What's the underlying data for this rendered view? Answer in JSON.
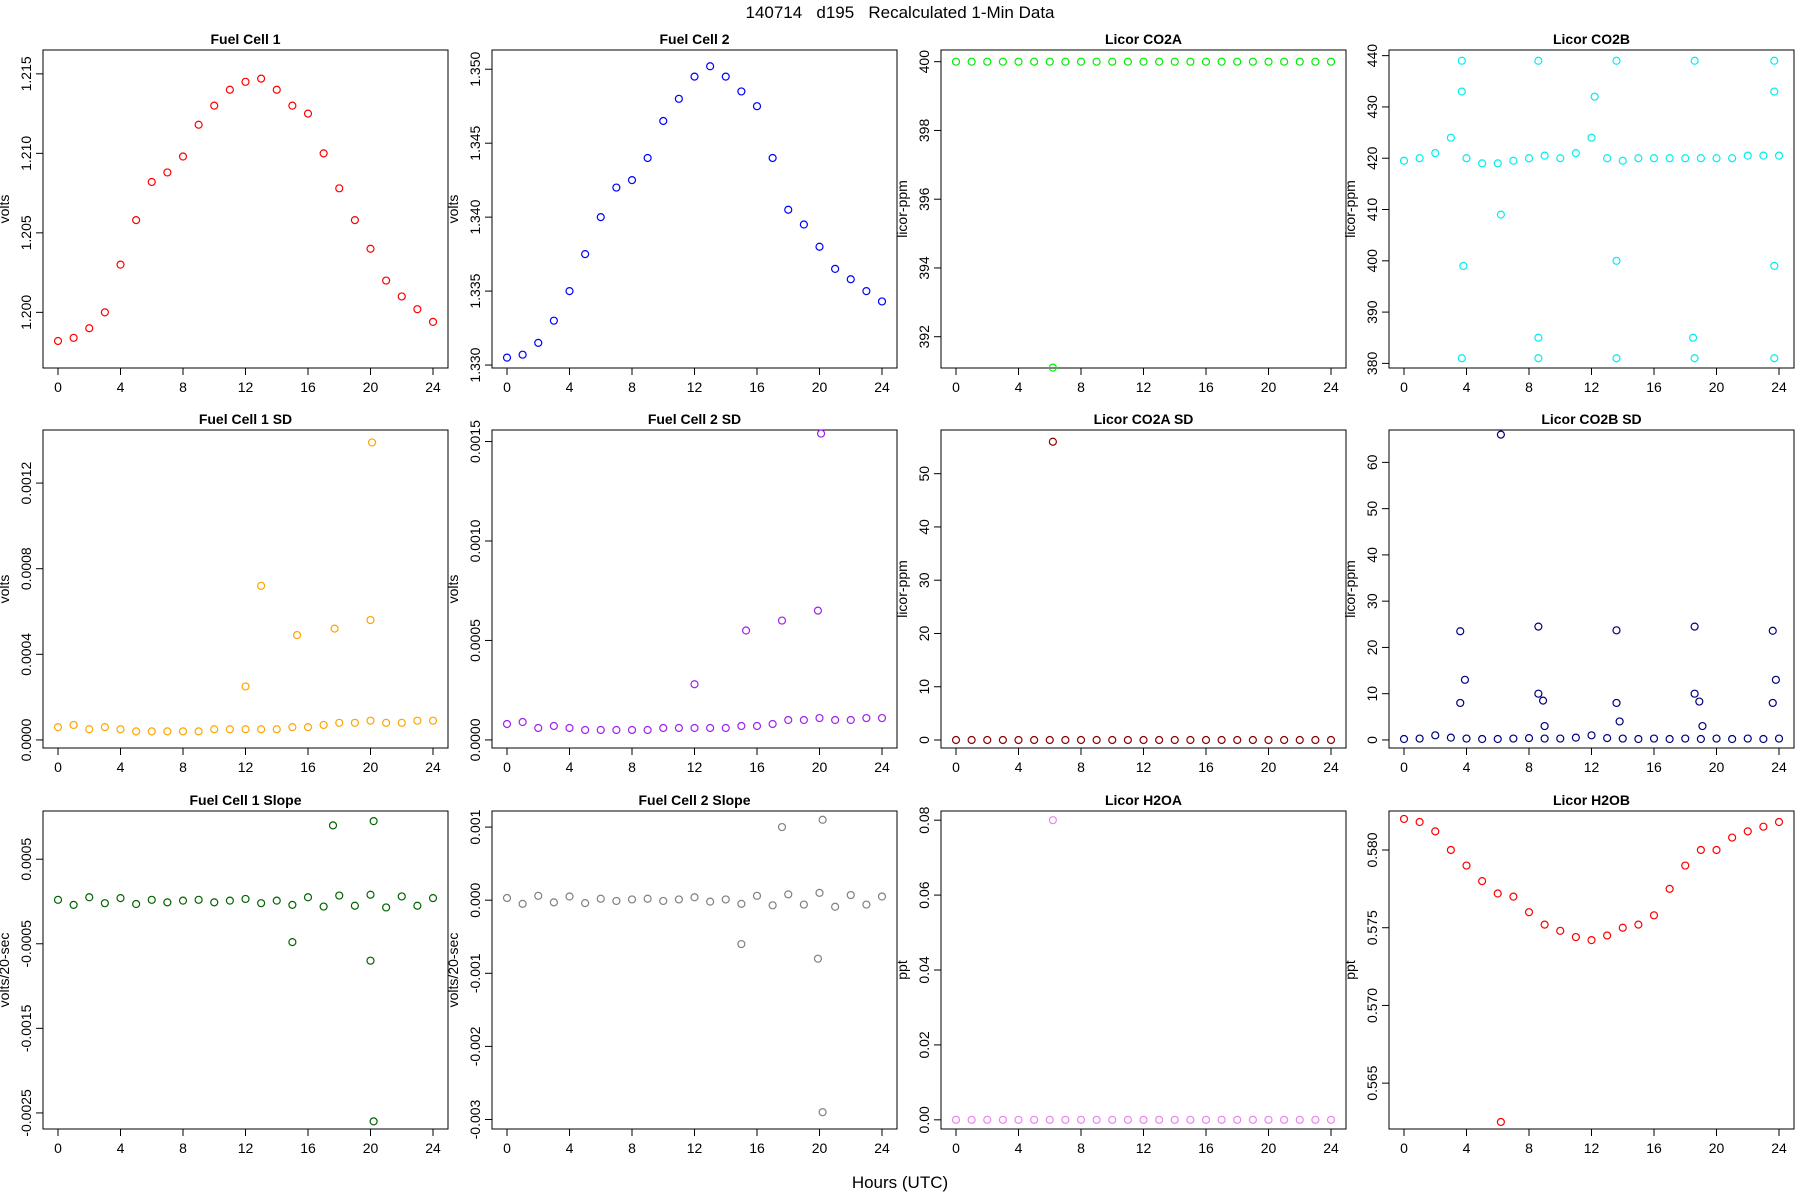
{
  "title": "140714   d195   Recalculated 1-Min Data",
  "x_label": "Hours (UTC)",
  "chart_data": [
    {
      "type": "scatter",
      "title": "Fuel Cell 1",
      "y_label": "volts",
      "color": "#ff0000",
      "x": [
        0,
        1,
        2,
        3,
        4,
        5,
        6,
        7,
        8,
        9,
        10,
        11,
        12,
        13,
        14,
        15,
        16,
        17,
        18,
        19,
        20,
        21,
        22,
        23,
        24
      ],
      "values": [
        1.1982,
        1.1984,
        1.199,
        1.2,
        1.203,
        1.2058,
        1.2082,
        1.2088,
        1.2098,
        1.2118,
        1.213,
        1.214,
        1.2145,
        1.2147,
        1.214,
        1.213,
        1.2125,
        1.21,
        1.2078,
        1.2058,
        1.204,
        1.202,
        1.201,
        1.2002,
        1.1994
      ],
      "xlim": [
        -0.96,
        24.96
      ],
      "xticks": [
        0,
        4,
        8,
        12,
        16,
        20,
        24
      ],
      "ylim": [
        1.1965,
        1.2165
      ],
      "yticks": [
        {
          "value": 1.2,
          "label": "1.200"
        },
        1.205,
        {
          "value": 1.21,
          "label": "1.210"
        },
        1.215
      ]
    },
    {
      "type": "scatter",
      "title": "Fuel Cell 2",
      "y_label": "volts",
      "color": "#0000ff",
      "x": [
        0,
        1,
        2,
        3,
        4,
        5,
        6,
        7,
        8,
        9,
        10,
        11,
        12,
        13,
        14,
        15,
        16,
        17,
        18,
        19,
        20,
        21,
        22,
        23,
        24
      ],
      "values": [
        1.3305,
        1.3307,
        1.3315,
        1.333,
        1.335,
        1.3375,
        1.34,
        1.342,
        1.3425,
        1.344,
        1.3465,
        1.348,
        1.3495,
        1.3502,
        1.3495,
        1.3485,
        1.3475,
        1.344,
        1.3405,
        1.3395,
        1.338,
        1.3365,
        1.3358,
        1.335,
        1.3343
      ],
      "xlim": [
        -0.96,
        24.96
      ],
      "xticks": [
        0,
        4,
        8,
        12,
        16,
        20,
        24
      ],
      "ylim": [
        1.3298,
        1.3513
      ],
      "yticks": [
        {
          "value": 1.33,
          "label": "1.330"
        },
        1.335,
        {
          "value": 1.34,
          "label": "1.340"
        },
        1.345,
        {
          "value": 1.35,
          "label": "1.350"
        }
      ]
    },
    {
      "type": "scatter",
      "title": "Licor CO2A",
      "y_label": "licor-ppm",
      "color": "#00ee00",
      "x": [
        0,
        1,
        2,
        3,
        4,
        5,
        6,
        7,
        8,
        9,
        10,
        11,
        12,
        13,
        14,
        15,
        16,
        17,
        18,
        19,
        20,
        21,
        22,
        23,
        24,
        6.2
      ],
      "values": [
        400,
        400,
        400,
        400,
        400,
        400,
        400,
        400,
        400,
        400,
        400,
        400,
        400,
        400,
        400,
        400,
        400,
        400,
        400,
        400,
        400,
        400,
        400,
        400,
        400,
        391.1
      ],
      "xlim": [
        -0.96,
        24.96
      ],
      "xticks": [
        0,
        4,
        8,
        12,
        16,
        20,
        24
      ],
      "ylim": [
        391.09,
        400.34
      ],
      "yticks": [
        392,
        394,
        396,
        398,
        400
      ]
    },
    {
      "type": "scatter",
      "title": "Licor CO2B",
      "y_label": "licor-ppm",
      "color": "#00eeee",
      "x": [
        0,
        1,
        2,
        3,
        4,
        5,
        6,
        7,
        8,
        9,
        10,
        11,
        12,
        13,
        14,
        15,
        16,
        17,
        18,
        19,
        20,
        21,
        22,
        23,
        24,
        3.7,
        3.7,
        3.7,
        3.8,
        8.6,
        8.6,
        8.6,
        13.6,
        13.6,
        13.6,
        18.6,
        18.6,
        18.5,
        23.7,
        23.7,
        23.7,
        23.7,
        6.2,
        12.2
      ],
      "values": [
        419.5,
        420,
        421,
        424,
        420,
        419,
        419,
        419.5,
        420,
        420.5,
        420,
        421,
        424,
        420,
        419.5,
        420,
        420,
        420,
        420,
        420,
        420,
        420,
        420.5,
        420.5,
        420.5,
        439,
        381,
        433,
        399,
        439,
        381,
        385,
        439,
        381,
        400,
        439,
        381,
        385,
        439,
        381,
        433,
        399,
        409,
        432
      ],
      "xlim": [
        -0.96,
        24.96
      ],
      "xticks": [
        0,
        4,
        8,
        12,
        16,
        20,
        24
      ],
      "ylim": [
        379.1,
        441.1
      ],
      "yticks": [
        380,
        390,
        400,
        410,
        420,
        430,
        440
      ]
    },
    {
      "type": "scatter",
      "title": "Fuel Cell 1 SD",
      "y_label": "volts",
      "color": "#ffa500",
      "x": [
        0,
        1,
        2,
        3,
        4,
        5,
        6,
        7,
        8,
        9,
        10,
        11,
        12,
        13,
        14,
        15,
        16,
        17,
        18,
        19,
        20,
        21,
        22,
        23,
        24,
        13,
        20.1,
        15.3,
        17.7,
        20,
        12
      ],
      "values": [
        6e-05,
        7e-05,
        5e-05,
        6e-05,
        5e-05,
        4e-05,
        4e-05,
        4e-05,
        4e-05,
        4e-05,
        5e-05,
        5e-05,
        5e-05,
        5e-05,
        5e-05,
        6e-05,
        6e-05,
        7e-05,
        8e-05,
        8e-05,
        9e-05,
        8e-05,
        8e-05,
        9e-05,
        9e-05,
        0.00072,
        0.00139,
        0.00049,
        0.00052,
        0.00056,
        0.00025
      ],
      "xlim": [
        -0.96,
        24.96
      ],
      "xticks": [
        0,
        4,
        8,
        12,
        16,
        20,
        24
      ],
      "ylim": [
        -3.77e-05,
        0.001448
      ],
      "yticks": [
        {
          "value": 0,
          "label": "0.0000"
        },
        0.0004,
        0.0008,
        0.0012
      ]
    },
    {
      "type": "scatter",
      "title": "Fuel Cell 2 SD",
      "y_label": "volts",
      "color": "#a020f0",
      "x": [
        0,
        1,
        2,
        3,
        4,
        5,
        6,
        7,
        8,
        9,
        10,
        11,
        12,
        13,
        14,
        15,
        16,
        17,
        18,
        19,
        20,
        21,
        22,
        23,
        24,
        20.1,
        19.9,
        17.6,
        15.3,
        12
      ],
      "values": [
        8e-05,
        9e-05,
        6e-05,
        7e-05,
        6e-05,
        5e-05,
        5e-05,
        5e-05,
        5e-05,
        5e-05,
        6e-05,
        6e-05,
        6e-05,
        6e-05,
        6e-05,
        7e-05,
        7e-05,
        8e-05,
        0.0001,
        0.0001,
        0.00011,
        0.0001,
        0.0001,
        0.00011,
        0.00011,
        0.00154,
        0.00065,
        0.0006,
        0.00055,
        0.00028
      ],
      "xlim": [
        -0.96,
        24.96
      ],
      "xticks": [
        0,
        4,
        8,
        12,
        16,
        20,
        24
      ],
      "ylim": [
        -4.06e-05,
        0.001558
      ],
      "yticks": [
        {
          "value": 0,
          "label": "0.0000"
        },
        0.0005,
        {
          "value": 0.001,
          "label": "0.0010"
        },
        0.0015
      ]
    },
    {
      "type": "scatter",
      "title": "Licor CO2A SD",
      "y_label": "licor-ppm",
      "color": "#8b0000",
      "x": [
        0,
        1,
        2,
        3,
        4,
        5,
        6,
        7,
        8,
        9,
        10,
        11,
        12,
        13,
        14,
        15,
        16,
        17,
        18,
        19,
        20,
        21,
        22,
        23,
        24,
        6.2
      ],
      "values": [
        0,
        0,
        0,
        0,
        0,
        0,
        0,
        0,
        0,
        0,
        0,
        0,
        0,
        0,
        0,
        0,
        0,
        0,
        0,
        0,
        0,
        0,
        0,
        0,
        0,
        56
      ],
      "xlim": [
        -0.96,
        24.96
      ],
      "xticks": [
        0,
        4,
        8,
        12,
        16,
        20,
        24
      ],
      "ylim": [
        -1.5,
        58.2
      ],
      "yticks": [
        0,
        10,
        20,
        30,
        40,
        50
      ]
    },
    {
      "type": "scatter",
      "title": "Licor CO2B SD",
      "y_label": "licor-ppm",
      "color": "#000080",
      "x": [
        0,
        1,
        2,
        3,
        4,
        5,
        6,
        7,
        8,
        9,
        10,
        11,
        12,
        13,
        14,
        15,
        16,
        17,
        18,
        19,
        20,
        21,
        22,
        23,
        24,
        6.2,
        3.6,
        3.9,
        3.6,
        8.6,
        8.6,
        8.9,
        9.0,
        13.6,
        13.6,
        13.8,
        18.6,
        18.6,
        18.9,
        19.1,
        23.6,
        23.8,
        23.6
      ],
      "values": [
        0.2,
        0.3,
        1,
        0.5,
        0.3,
        0.2,
        0.2,
        0.3,
        0.4,
        0.3,
        0.3,
        0.5,
        1,
        0.4,
        0.3,
        0.2,
        0.3,
        0.2,
        0.3,
        0.2,
        0.3,
        0.2,
        0.3,
        0.2,
        0.3,
        66,
        23.5,
        13,
        8,
        24.5,
        10,
        8.5,
        3,
        23.7,
        8,
        4,
        24.5,
        10,
        8.3,
        3,
        23.6,
        13,
        8
      ],
      "xlim": [
        -0.96,
        24.96
      ],
      "xticks": [
        0,
        4,
        8,
        12,
        16,
        20,
        24
      ],
      "ylim": [
        -1.74,
        67
      ],
      "yticks": [
        0,
        10,
        20,
        30,
        40,
        50,
        60
      ]
    },
    {
      "type": "scatter",
      "title": "Fuel Cell 1 Slope",
      "y_label": "volts/20-sec",
      "color": "#006400",
      "x": [
        0,
        1,
        2,
        3,
        4,
        5,
        6,
        7,
        8,
        9,
        10,
        11,
        12,
        13,
        14,
        15,
        16,
        17,
        18,
        19,
        20,
        21,
        22,
        23,
        24,
        17.6,
        20.2,
        20,
        20.2,
        15
      ],
      "values": [
        2e-05,
        -4e-05,
        5e-05,
        -2e-05,
        4e-05,
        -3e-05,
        2e-05,
        -1e-05,
        1e-05,
        2e-05,
        -1e-05,
        1e-05,
        3e-05,
        -2e-05,
        1e-05,
        -4e-05,
        5e-05,
        -6e-05,
        7e-05,
        -5e-05,
        8e-05,
        -7e-05,
        6e-05,
        -5e-05,
        4e-05,
        0.0009,
        0.00095,
        -0.0007,
        -0.0026,
        -0.00048
      ],
      "xlim": [
        -0.96,
        24.96
      ],
      "xticks": [
        0,
        4,
        8,
        12,
        16,
        20,
        24
      ],
      "ylim": [
        -0.00269,
        0.00107
      ],
      "yticks": [
        -0.0025,
        -0.0015,
        -0.0005,
        0.0005
      ]
    },
    {
      "type": "scatter",
      "title": "Fuel Cell 2 Slope",
      "y_label": "volts/20-sec",
      "color": "#808080",
      "x": [
        0,
        1,
        2,
        3,
        4,
        5,
        6,
        7,
        8,
        9,
        10,
        11,
        12,
        13,
        14,
        15,
        16,
        17,
        18,
        19,
        20,
        21,
        22,
        23,
        24,
        17.6,
        20.2,
        19.9,
        20.2,
        15
      ],
      "values": [
        3e-05,
        -5e-05,
        6e-05,
        -3e-05,
        5e-05,
        -4e-05,
        2e-05,
        -1e-05,
        1e-05,
        2e-05,
        -1e-05,
        1e-05,
        4e-05,
        -2e-05,
        1e-05,
        -5e-05,
        6e-05,
        -7e-05,
        8e-05,
        -6e-05,
        0.0001,
        -9e-05,
        7e-05,
        -6e-05,
        5e-05,
        0.001,
        0.0011,
        -0.0008,
        -0.0029,
        -0.0006
      ],
      "xlim": [
        -0.96,
        24.96
      ],
      "xticks": [
        0,
        4,
        8,
        12,
        16,
        20,
        24
      ],
      "ylim": [
        -0.00313,
        0.00122
      ],
      "yticks": [
        -0.003,
        -0.002,
        -0.001,
        {
          "value": 0,
          "label": "0.000"
        },
        0.001
      ]
    },
    {
      "type": "scatter",
      "title": "Licor H2OA",
      "y_label": "ppt",
      "color": "#ee82ee",
      "x": [
        0,
        1,
        2,
        3,
        4,
        5,
        6,
        7,
        8,
        9,
        10,
        11,
        12,
        13,
        14,
        15,
        16,
        17,
        18,
        19,
        20,
        21,
        22,
        23,
        24,
        6.2
      ],
      "values": [
        0,
        0,
        0,
        0,
        0,
        0,
        0,
        0,
        0,
        0,
        0,
        0,
        0,
        0,
        0,
        0,
        0,
        0,
        0,
        0,
        0,
        0,
        0,
        0,
        0,
        0.08
      ],
      "xlim": [
        -0.96,
        24.96
      ],
      "xticks": [
        0,
        4,
        8,
        12,
        16,
        20,
        24
      ],
      "ylim": [
        -0.00245,
        0.08245
      ],
      "yticks": [
        {
          "value": 0,
          "label": "0.00"
        },
        0.02,
        0.04,
        0.06,
        {
          "value": 0.08,
          "label": "0.08"
        }
      ]
    },
    {
      "type": "scatter",
      "title": "Licor H2OB",
      "y_label": "ppt",
      "color": "#ff0000",
      "x": [
        0,
        1,
        2,
        3,
        4,
        5,
        6,
        7,
        8,
        9,
        10,
        11,
        12,
        13,
        14,
        15,
        16,
        17,
        18,
        19,
        20,
        21,
        22,
        23,
        24,
        6.2
      ],
      "values": [
        0.582,
        0.5818,
        0.5812,
        0.58,
        0.579,
        0.578,
        0.5772,
        0.577,
        0.576,
        0.5752,
        0.5748,
        0.5744,
        0.5742,
        0.5745,
        0.575,
        0.5752,
        0.5758,
        0.5775,
        0.579,
        0.58,
        0.58,
        0.5808,
        0.5812,
        0.5815,
        0.5818,
        0.5625
      ],
      "xlim": [
        -0.96,
        24.96
      ],
      "xticks": [
        0,
        4,
        8,
        12,
        16,
        20,
        24
      ],
      "ylim": [
        0.56205,
        0.58251
      ],
      "yticks": [
        0.565,
        {
          "value": 0.57,
          "label": "0.570"
        },
        0.575,
        {
          "value": 0.58,
          "label": "0.580"
        }
      ]
    }
  ]
}
